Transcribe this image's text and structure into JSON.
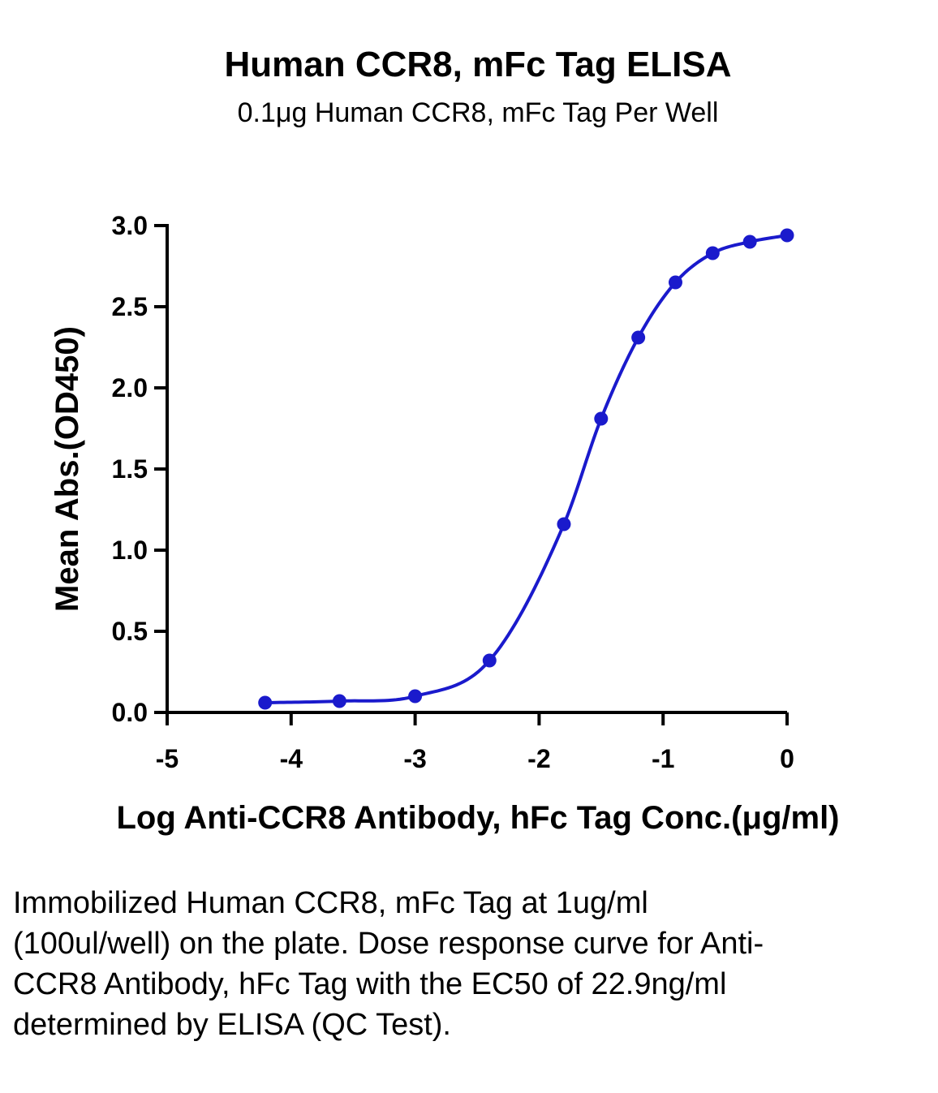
{
  "chart_data": {
    "type": "scatter",
    "title": "Human CCR8, mFc Tag ELISA",
    "subtitle": "0.1μg Human CCR8, mFc Tag Per Well",
    "xlabel": "Log Anti-CCR8 Antibody, hFc Tag Conc.(μg/ml)",
    "ylabel": "Mean Abs.(OD450)",
    "xlim": [
      -5,
      0
    ],
    "ylim": [
      0,
      3.0
    ],
    "x_ticks": [
      "-5",
      "-4",
      "-3",
      "-2",
      "-1",
      "0"
    ],
    "y_ticks": [
      "0.0",
      "0.5",
      "1.0",
      "1.5",
      "2.0",
      "2.5",
      "3.0"
    ],
    "series": [
      {
        "x": [
          -4.21,
          -3.61,
          -3.0,
          -2.4,
          -1.8,
          -1.5,
          -1.2,
          -0.9,
          -0.6,
          -0.3,
          0.0
        ],
        "y": [
          0.06,
          0.07,
          0.1,
          0.32,
          1.16,
          1.81,
          2.31,
          2.65,
          2.83,
          2.9,
          2.94
        ],
        "color": "#1a1acc",
        "fit": "four-parameter logistic"
      }
    ],
    "grid": false,
    "legend": "none"
  },
  "caption": "Immobilized Human CCR8, mFc Tag at 1ug/ml (100ul/well) on the plate. Dose response curve for Anti-CCR8 Antibody, hFc Tag with the EC50 of 22.9ng/ml determined by ELISA (QC Test)."
}
